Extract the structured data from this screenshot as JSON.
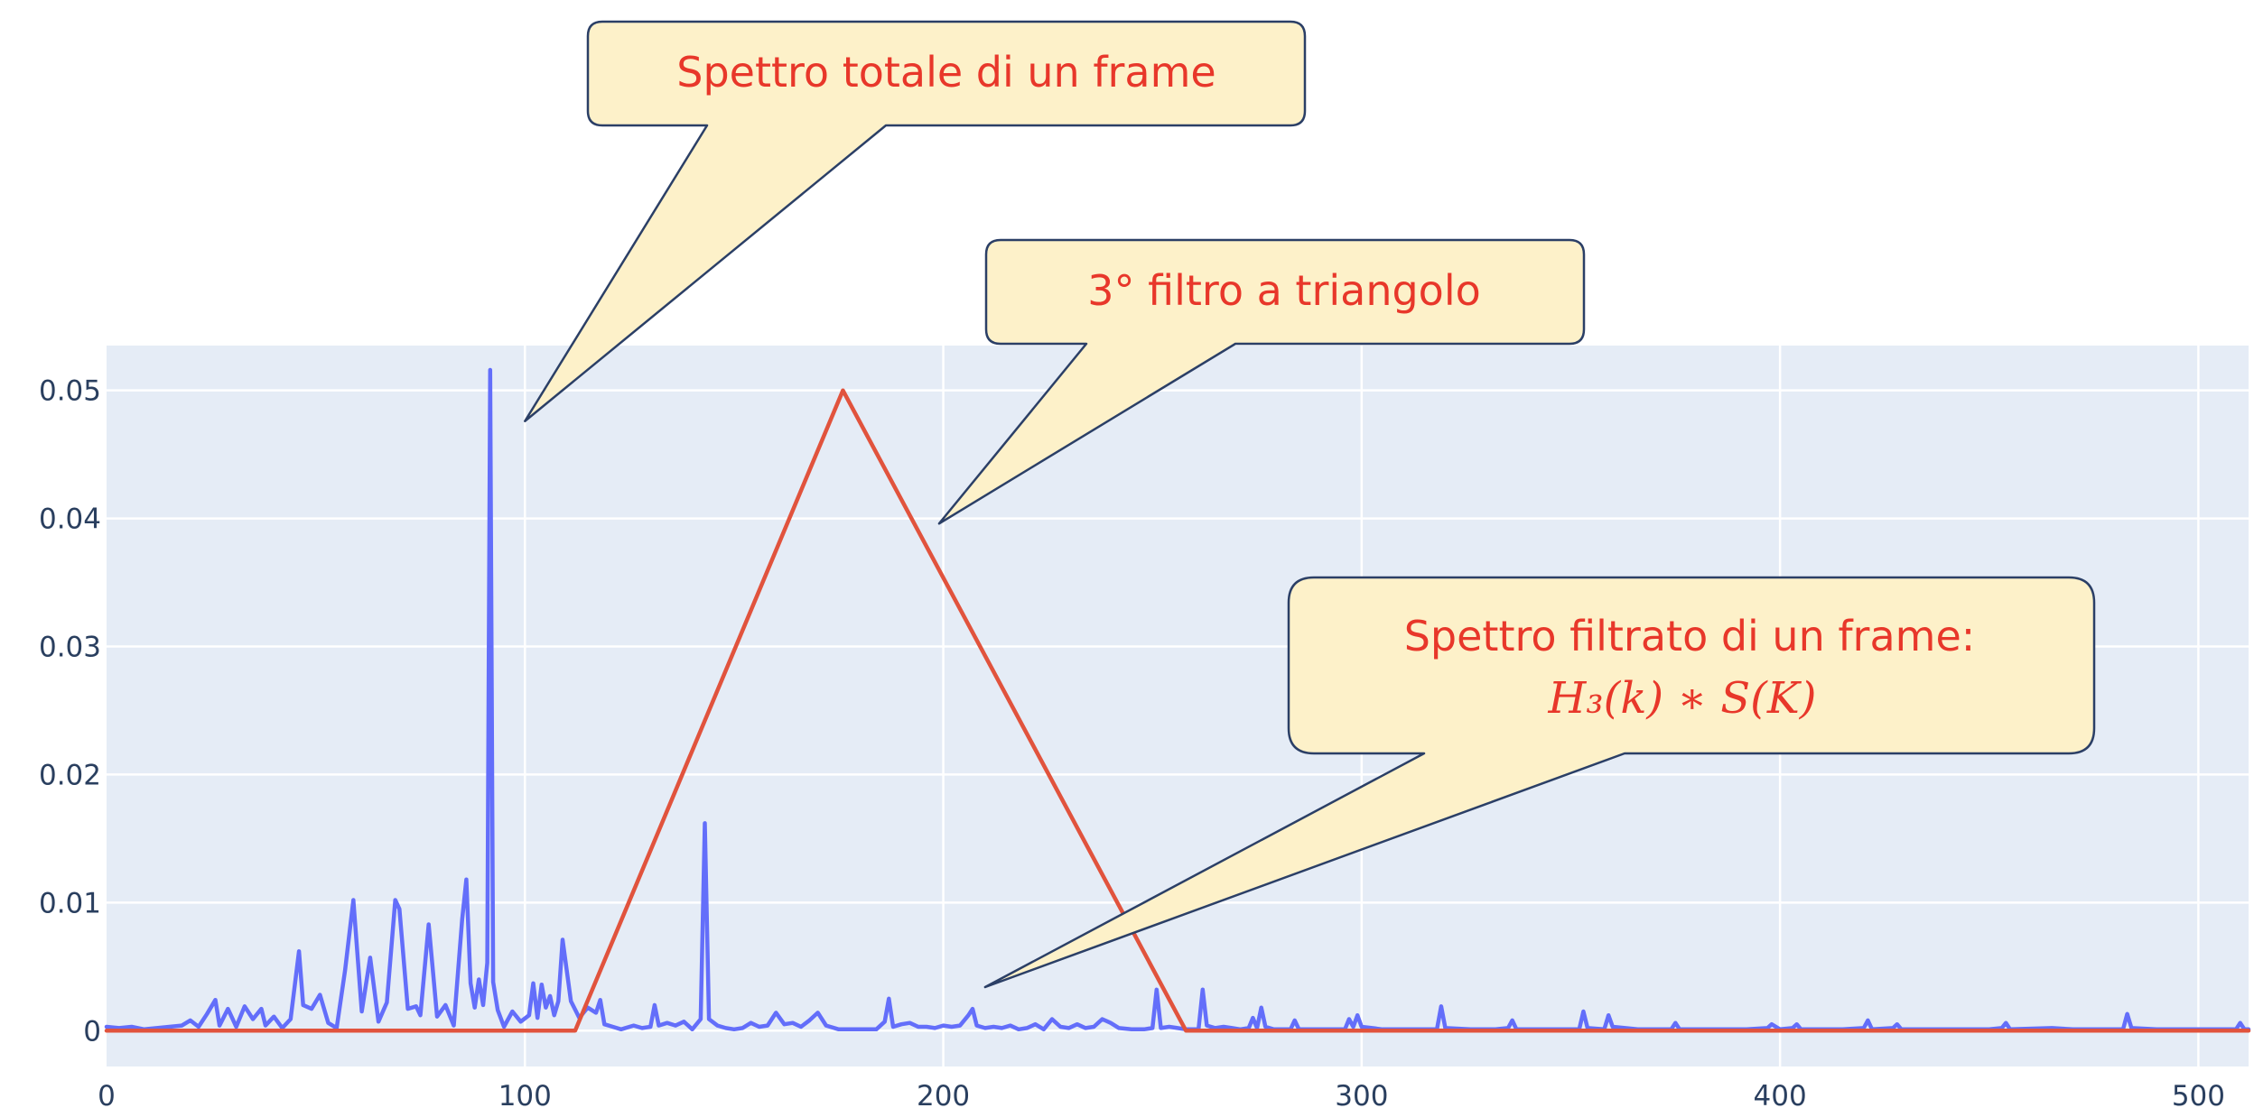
{
  "chart_data": {
    "type": "line",
    "title": "",
    "xlabel": "",
    "ylabel": "",
    "xlim": [
      0,
      512
    ],
    "ylim": [
      -0.0028,
      0.0535
    ],
    "grid": true,
    "x_ticks": [
      0,
      100,
      200,
      300,
      400,
      500
    ],
    "x_tick_labels": [
      "0",
      "100",
      "200",
      "300",
      "400",
      "500"
    ],
    "y_ticks": [
      0,
      0.01,
      0.02,
      0.03,
      0.04,
      0.05
    ],
    "y_tick_labels": [
      "0",
      "0.01",
      "0.02",
      "0.03",
      "0.04",
      "0.05"
    ],
    "colors": {
      "plot_bg": "#e5ecf6",
      "grid": "#ffffff",
      "spectrum": "#636efa",
      "filter": "#e1533d",
      "callout_fill": "#fdf1c9",
      "callout_stroke": "#2b3f66",
      "callout_text": "#e8372a"
    },
    "series": [
      {
        "key": "spectrum",
        "points": [
          [
            0,
            0.0003
          ],
          [
            3,
            0.0002
          ],
          [
            6,
            0.0003
          ],
          [
            9,
            0.0001
          ],
          [
            12,
            0.0002
          ],
          [
            15,
            0.0003
          ],
          [
            18,
            0.0004
          ],
          [
            20,
            0.0008
          ],
          [
            22,
            0.0003
          ],
          [
            24,
            0.0013
          ],
          [
            26,
            0.0024
          ],
          [
            27,
            0.0004
          ],
          [
            29,
            0.0017
          ],
          [
            31,
            0.0003
          ],
          [
            33,
            0.0019
          ],
          [
            35,
            0.0009
          ],
          [
            37,
            0.0017
          ],
          [
            38,
            0.0004
          ],
          [
            40,
            0.0011
          ],
          [
            42,
            0.0002
          ],
          [
            44,
            0.0009
          ],
          [
            46,
            0.0062
          ],
          [
            47,
            0.002
          ],
          [
            49,
            0.0017
          ],
          [
            51,
            0.0028
          ],
          [
            53,
            0.0006
          ],
          [
            55,
            0.0002
          ],
          [
            57,
            0.0047
          ],
          [
            59,
            0.0102
          ],
          [
            61,
            0.0015
          ],
          [
            63,
            0.0057
          ],
          [
            65,
            0.0007
          ],
          [
            67,
            0.0022
          ],
          [
            69,
            0.0102
          ],
          [
            70,
            0.0095
          ],
          [
            72,
            0.0017
          ],
          [
            74,
            0.0019
          ],
          [
            75,
            0.0012
          ],
          [
            77,
            0.0083
          ],
          [
            79,
            0.0011
          ],
          [
            81,
            0.002
          ],
          [
            83,
            0.0004
          ],
          [
            85,
            0.0087
          ],
          [
            86,
            0.0118
          ],
          [
            87,
            0.0037
          ],
          [
            88,
            0.0018
          ],
          [
            89,
            0.004
          ],
          [
            90,
            0.002
          ],
          [
            91,
            0.0053
          ],
          [
            91.7,
            0.0516
          ],
          [
            92.4,
            0.0038
          ],
          [
            93.5,
            0.0016
          ],
          [
            95,
            0.0003
          ],
          [
            97,
            0.0015
          ],
          [
            99,
            0.0007
          ],
          [
            101,
            0.0012
          ],
          [
            102,
            0.0037
          ],
          [
            103,
            0.001
          ],
          [
            104,
            0.0036
          ],
          [
            105,
            0.0018
          ],
          [
            106,
            0.0027
          ],
          [
            107,
            0.0012
          ],
          [
            108,
            0.0023
          ],
          [
            109,
            0.0071
          ],
          [
            111,
            0.0023
          ],
          [
            113,
            0.001
          ],
          [
            115,
            0.0018
          ],
          [
            117,
            0.0014
          ],
          [
            118,
            0.0024
          ],
          [
            119,
            0.0005
          ],
          [
            121,
            0.0003
          ],
          [
            123,
            0.0001
          ],
          [
            126,
            0.0004
          ],
          [
            128,
            0.0002
          ],
          [
            130,
            0.0003
          ],
          [
            131,
            0.002
          ],
          [
            132,
            0.0004
          ],
          [
            134,
            0.0006
          ],
          [
            136,
            0.0004
          ],
          [
            138,
            0.0007
          ],
          [
            140,
            0.0001
          ],
          [
            142,
            0.0009
          ],
          [
            143,
            0.0162
          ],
          [
            144,
            0.0009
          ],
          [
            146,
            0.0004
          ],
          [
            148,
            0.0002
          ],
          [
            150,
            0.0001
          ],
          [
            152,
            0.0002
          ],
          [
            154,
            0.0006
          ],
          [
            156,
            0.0003
          ],
          [
            158,
            0.0004
          ],
          [
            160,
            0.0014
          ],
          [
            162,
            0.0005
          ],
          [
            164,
            0.0006
          ],
          [
            166,
            0.0003
          ],
          [
            168,
            0.0008
          ],
          [
            170,
            0.0014
          ],
          [
            172,
            0.0004
          ],
          [
            175,
            0.0001
          ],
          [
            180,
            0.0001
          ],
          [
            184,
            0.0001
          ],
          [
            186,
            0.0007
          ],
          [
            187,
            0.0025
          ],
          [
            188,
            0.0003
          ],
          [
            190,
            0.0005
          ],
          [
            192,
            0.0006
          ],
          [
            194,
            0.0003
          ],
          [
            196,
            0.0003
          ],
          [
            198,
            0.0002
          ],
          [
            200,
            0.0004
          ],
          [
            202,
            0.0003
          ],
          [
            204,
            0.0004
          ],
          [
            206,
            0.0012
          ],
          [
            207,
            0.0017
          ],
          [
            208,
            0.0004
          ],
          [
            210,
            0.0002
          ],
          [
            212,
            0.0003
          ],
          [
            214,
            0.0002
          ],
          [
            216,
            0.0004
          ],
          [
            218,
            0.0001
          ],
          [
            220,
            0.0002
          ],
          [
            222,
            0.0005
          ],
          [
            224,
            0.0001
          ],
          [
            226,
            0.0009
          ],
          [
            228,
            0.0003
          ],
          [
            230,
            0.0002
          ],
          [
            232,
            0.0005
          ],
          [
            234,
            0.0002
          ],
          [
            236,
            0.0003
          ],
          [
            238,
            0.0009
          ],
          [
            240,
            0.0006
          ],
          [
            242,
            0.0002
          ],
          [
            245,
            0.0001
          ],
          [
            248,
            0.0001
          ],
          [
            250,
            0.0002
          ],
          [
            251,
            0.0032
          ],
          [
            252,
            0.0002
          ],
          [
            254,
            0.0003
          ],
          [
            256,
            0.0002
          ],
          [
            258,
            0.0001
          ],
          [
            261,
            0.0001
          ],
          [
            262,
            0.0032
          ],
          [
            263,
            0.0004
          ],
          [
            265,
            0.0002
          ],
          [
            267,
            0.0003
          ],
          [
            269,
            0.0002
          ],
          [
            271,
            0.0001
          ],
          [
            273,
            0.0002
          ],
          [
            274,
            0.001
          ],
          [
            275,
            0.0002
          ],
          [
            276,
            0.0018
          ],
          [
            277,
            0.0003
          ],
          [
            279,
            0.0001
          ],
          [
            283,
            0.0001
          ],
          [
            284,
            0.0008
          ],
          [
            285,
            0.0001
          ],
          [
            290,
            0.0001
          ],
          [
            296,
            0.0001
          ],
          [
            297,
            0.0009
          ],
          [
            298,
            0.0003
          ],
          [
            299,
            0.0012
          ],
          [
            300,
            0.0003
          ],
          [
            305,
            0.0001
          ],
          [
            312,
            0.0001
          ],
          [
            318,
            0.0001
          ],
          [
            319,
            0.0019
          ],
          [
            320,
            0.0002
          ],
          [
            326,
            0.0001
          ],
          [
            332,
            0.0001
          ],
          [
            335,
            0.0002
          ],
          [
            336,
            0.0008
          ],
          [
            337,
            0.0001
          ],
          [
            345,
            0.0001
          ],
          [
            352,
            0.0001
          ],
          [
            353,
            0.0015
          ],
          [
            354,
            0.0002
          ],
          [
            358,
            0.0001
          ],
          [
            359,
            0.0012
          ],
          [
            360,
            0.0003
          ],
          [
            366,
            0.0001
          ],
          [
            374,
            0.0001
          ],
          [
            375,
            0.0006
          ],
          [
            376,
            0.0001
          ],
          [
            385,
            0.0001
          ],
          [
            392,
            0.0001
          ],
          [
            397,
            0.0002
          ],
          [
            398,
            0.0005
          ],
          [
            400,
            0.0001
          ],
          [
            403,
            0.0002
          ],
          [
            404,
            0.0005
          ],
          [
            405,
            0.0001
          ],
          [
            415,
            0.0001
          ],
          [
            420,
            0.0002
          ],
          [
            421,
            0.0008
          ],
          [
            422,
            0.0001
          ],
          [
            427,
            0.0002
          ],
          [
            428,
            0.0005
          ],
          [
            429,
            0.0001
          ],
          [
            440,
            0.0001
          ],
          [
            450,
            0.0001
          ],
          [
            453,
            0.0002
          ],
          [
            454,
            0.0006
          ],
          [
            455,
            0.0001
          ],
          [
            465,
            0.0002
          ],
          [
            470,
            0.0001
          ],
          [
            474,
            0.0001
          ],
          [
            482,
            0.0001
          ],
          [
            483,
            0.0013
          ],
          [
            484,
            0.0002
          ],
          [
            490,
            0.0001
          ],
          [
            500,
            0.0001
          ],
          [
            509,
            0.0001
          ],
          [
            510,
            0.0006
          ],
          [
            511,
            0.0001
          ],
          [
            512,
            0.0001
          ]
        ]
      },
      {
        "key": "filter",
        "points": [
          [
            0,
            0
          ],
          [
            112,
            0
          ],
          [
            176,
            0.05
          ],
          [
            258,
            0
          ],
          [
            512,
            0
          ]
        ]
      }
    ],
    "annotations": [
      {
        "key": "a1",
        "text": "Spettro totale di un frame",
        "x": 100,
        "y": 0.0476
      },
      {
        "key": "a2",
        "text": "3° filtro a triangolo",
        "x": 199,
        "y": 0.0396
      },
      {
        "key": "a3",
        "text": "Spettro filtrato di un frame:",
        "math": "H₃(k)  ∗  S(K)",
        "x": 210,
        "y": 0.0034
      }
    ]
  }
}
